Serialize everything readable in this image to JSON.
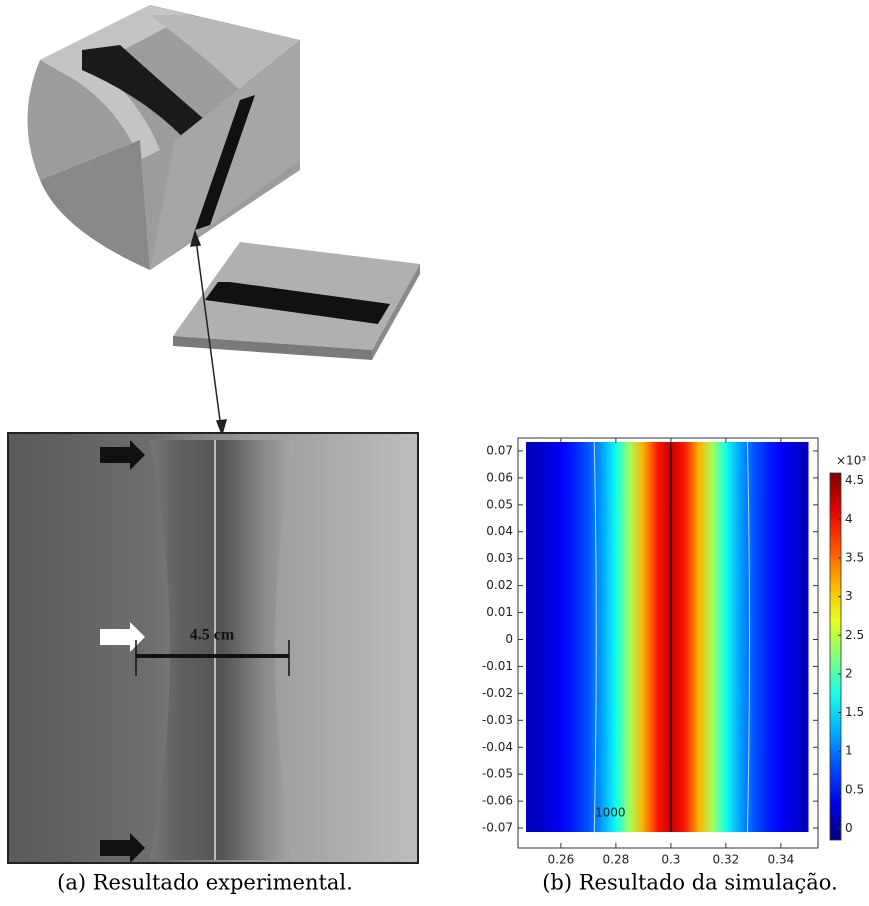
{
  "panel_a": {
    "annotation": "4.5 cm",
    "caption": "(a) Resultado experimental."
  },
  "chart_data": {
    "type": "heatmap",
    "caption": "(b) Resultado da simulação.",
    "x": [
      0.245,
      0.25,
      0.255,
      0.26,
      0.265,
      0.27,
      0.275,
      0.28,
      0.285,
      0.29,
      0.295,
      0.3,
      0.305,
      0.31,
      0.315,
      0.32,
      0.325,
      0.33,
      0.335,
      0.34,
      0.345,
      0.35,
      0.355
    ],
    "values": [
      0.1,
      0.15,
      0.25,
      0.4,
      0.6,
      0.85,
      1.2,
      1.7,
      2.4,
      3.2,
      3.9,
      4.3,
      3.9,
      3.2,
      2.4,
      1.7,
      1.2,
      0.85,
      0.6,
      0.4,
      0.25,
      0.15,
      0.1
    ],
    "xlim": [
      0.2444,
      0.3535
    ],
    "xticks": [
      0.26,
      0.28,
      0.3,
      0.32,
      0.34
    ],
    "ylim": [
      -0.0774,
      0.0748
    ],
    "yticks": [
      0.07,
      0.06,
      0.05,
      0.04,
      0.03,
      0.02,
      0.01,
      0,
      -0.01,
      -0.02,
      -0.03,
      -0.04,
      -0.05,
      -0.06,
      -0.07
    ],
    "colormap": "jet",
    "clim": [
      -0.15,
      4.6
    ],
    "colorbar_ticks": [
      0,
      0.5,
      1,
      1.5,
      2,
      2.5,
      3,
      3.5,
      4,
      4.5
    ],
    "colorbar_label": "×10³",
    "annotation": "1000"
  }
}
